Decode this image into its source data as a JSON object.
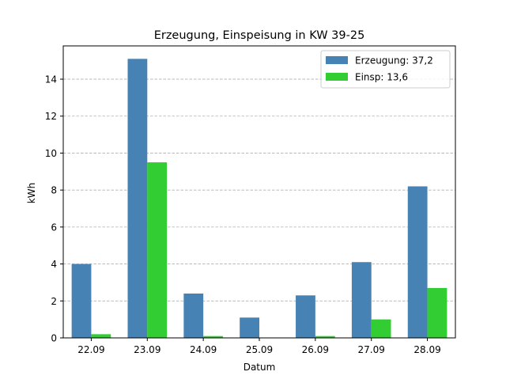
{
  "chart_data": {
    "type": "bar",
    "title": "Erzeugung, Einspeisung in KW 39-25",
    "xlabel": "Datum",
    "ylabel": "kWh",
    "categories": [
      "22.09",
      "23.09",
      "24.09",
      "25.09",
      "26.09",
      "27.09",
      "28.09"
    ],
    "series": [
      {
        "name": "Erzeugung: 37,2",
        "color": "#4682b4",
        "values": [
          4.0,
          15.1,
          2.4,
          1.1,
          2.3,
          4.1,
          8.2
        ]
      },
      {
        "name": "Einsp: 13,6",
        "color": "#32cd32",
        "values": [
          0.2,
          9.5,
          0.1,
          0.0,
          0.1,
          1.0,
          2.7
        ]
      }
    ],
    "ylim": [
      0,
      15.8
    ],
    "yticks": [
      0,
      2,
      4,
      6,
      8,
      10,
      12,
      14
    ],
    "grid": "y-dashed",
    "legend_position": "top-right"
  }
}
